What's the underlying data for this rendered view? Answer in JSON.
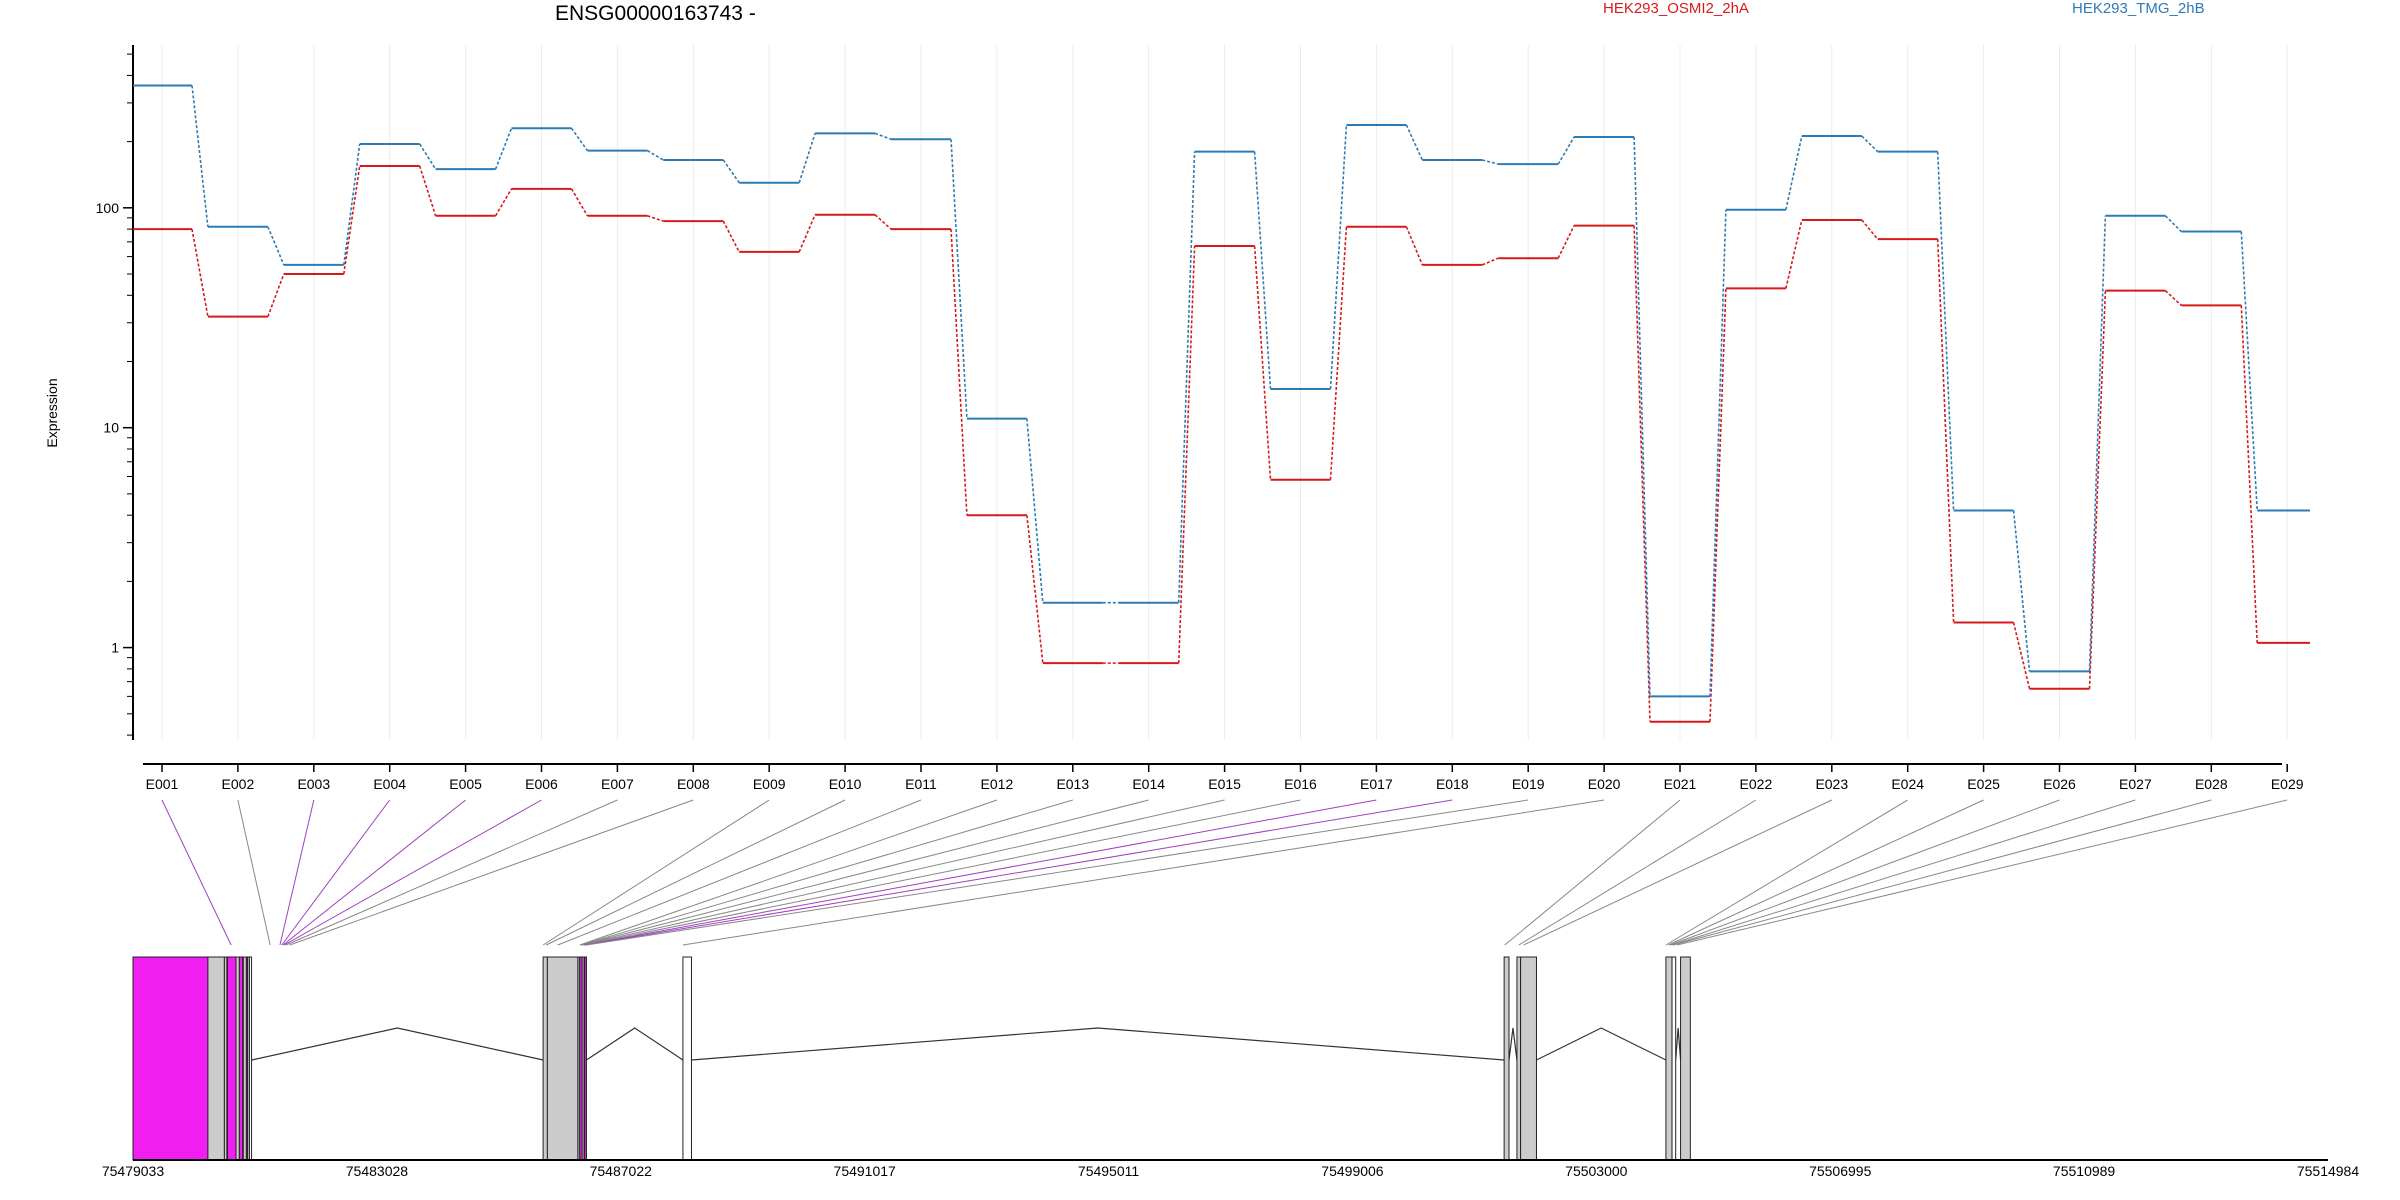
{
  "chart_data": {
    "type": "line",
    "title": "ENSG00000163743 -",
    "ylabel": "Expression",
    "yscale": "log",
    "ylim": [
      0.38,
      550
    ],
    "y_ticks": [
      1,
      10,
      100
    ],
    "y_tick_labels": [
      "1",
      "10",
      "100"
    ],
    "categories": [
      "E001",
      "E002",
      "E003",
      "E004",
      "E005",
      "E006",
      "E007",
      "E008",
      "E009",
      "E010",
      "E011",
      "E012",
      "E013",
      "E014",
      "E015",
      "E016",
      "E017",
      "E018",
      "E019",
      "E020",
      "E021",
      "E022",
      "E023",
      "E024",
      "E025",
      "E026",
      "E027",
      "E028",
      "E029"
    ],
    "series": [
      {
        "name": "HEK293_OSMI2_2hA",
        "color": "#d7191c",
        "values": [
          80,
          32,
          50,
          155,
          92,
          122,
          92,
          87,
          63,
          93,
          80,
          4.0,
          0.85,
          0.85,
          67,
          5.8,
          82,
          55,
          59,
          83,
          0.46,
          43,
          88,
          72,
          1.3,
          0.65,
          42,
          36,
          1.05
        ]
      },
      {
        "name": "HEK293_TMG_2hB",
        "color": "#2c7bb6",
        "values": [
          360,
          82,
          55,
          195,
          150,
          230,
          182,
          165,
          130,
          218,
          205,
          11,
          1.6,
          1.6,
          180,
          15,
          238,
          165,
          158,
          210,
          0.6,
          98,
          212,
          180,
          4.2,
          0.78,
          92,
          78,
          4.2
        ]
      }
    ],
    "genomic_axis": {
      "tick_labels": [
        "75479033",
        "75483028",
        "75487022",
        "75491017",
        "75495011",
        "75499006",
        "75503000",
        "75506995",
        "75510989",
        "75514984"
      ],
      "start": 75479033,
      "end": 75514984
    },
    "exon_blocks": [
      {
        "start": 75479033,
        "end": 75480260,
        "color": "#f01ef0"
      },
      {
        "start": 75480260,
        "end": 75480530,
        "color": "#cccccc"
      },
      {
        "start": 75480530,
        "end": 75480570,
        "color": "#cccccc"
      },
      {
        "start": 75480580,
        "end": 75480720,
        "color": "#f01ef0"
      },
      {
        "start": 75480720,
        "end": 75480775,
        "color": "#cccccc"
      },
      {
        "start": 75480775,
        "end": 75480830,
        "color": "#f01ef0"
      },
      {
        "start": 75480840,
        "end": 75480890,
        "color": "#cccccc"
      },
      {
        "start": 75480890,
        "end": 75480910,
        "color": "#f01ef0"
      },
      {
        "start": 75480910,
        "end": 75480940,
        "color": "#cccccc"
      },
      {
        "start": 75480940,
        "end": 75480975,
        "color": "#ffffff"
      },
      {
        "start": 75485750,
        "end": 75485820,
        "color": "#cccccc"
      },
      {
        "start": 75485820,
        "end": 75486320,
        "color": "#cccccc"
      },
      {
        "start": 75486320,
        "end": 75486350,
        "color": "#cccccc"
      },
      {
        "start": 75486350,
        "end": 75486390,
        "color": "#f01ef0"
      },
      {
        "start": 75486390,
        "end": 75486420,
        "color": "#cccccc"
      },
      {
        "start": 75486430,
        "end": 75486460,
        "color": "#f01ef0"
      },
      {
        "start": 75488040,
        "end": 75488180,
        "color": "#ffffff"
      },
      {
        "start": 75501490,
        "end": 75501570,
        "color": "#cccccc"
      },
      {
        "start": 75501700,
        "end": 75501760,
        "color": "#cccccc"
      },
      {
        "start": 75501760,
        "end": 75502020,
        "color": "#cccccc"
      },
      {
        "start": 75504140,
        "end": 75504240,
        "color": "#cccccc"
      },
      {
        "start": 75504240,
        "end": 75504300,
        "color": "#ffffff"
      },
      {
        "start": 75504380,
        "end": 75504540,
        "color": "#cccccc"
      }
    ],
    "exon_link_targets": [
      75480640,
      75481280,
      75481440,
      75481470,
      75481490,
      75481510,
      75481540,
      75481600,
      75485750,
      75485800,
      75485990,
      75486350,
      75486360,
      75486370,
      75486390,
      75486410,
      75486430,
      75486440,
      75486460,
      75488040,
      75501500,
      75501730,
      75501810,
      75504140,
      75504180,
      75504210,
      75504240,
      75504260,
      75504320
    ],
    "exon_link_colors": [
      "#a040c0",
      "#888888",
      "#a040c0",
      "#a040c0",
      "#a040c0",
      "#a040c0",
      "#888888",
      "#888888",
      "#888888",
      "#888888",
      "#888888",
      "#888888",
      "#888888",
      "#888888",
      "#888888",
      "#888888",
      "#a040c0",
      "#a040c0",
      "#888888",
      "#888888",
      "#888888",
      "#888888",
      "#888888",
      "#888888",
      "#888888",
      "#888888",
      "#888888",
      "#888888",
      "#888888"
    ]
  }
}
